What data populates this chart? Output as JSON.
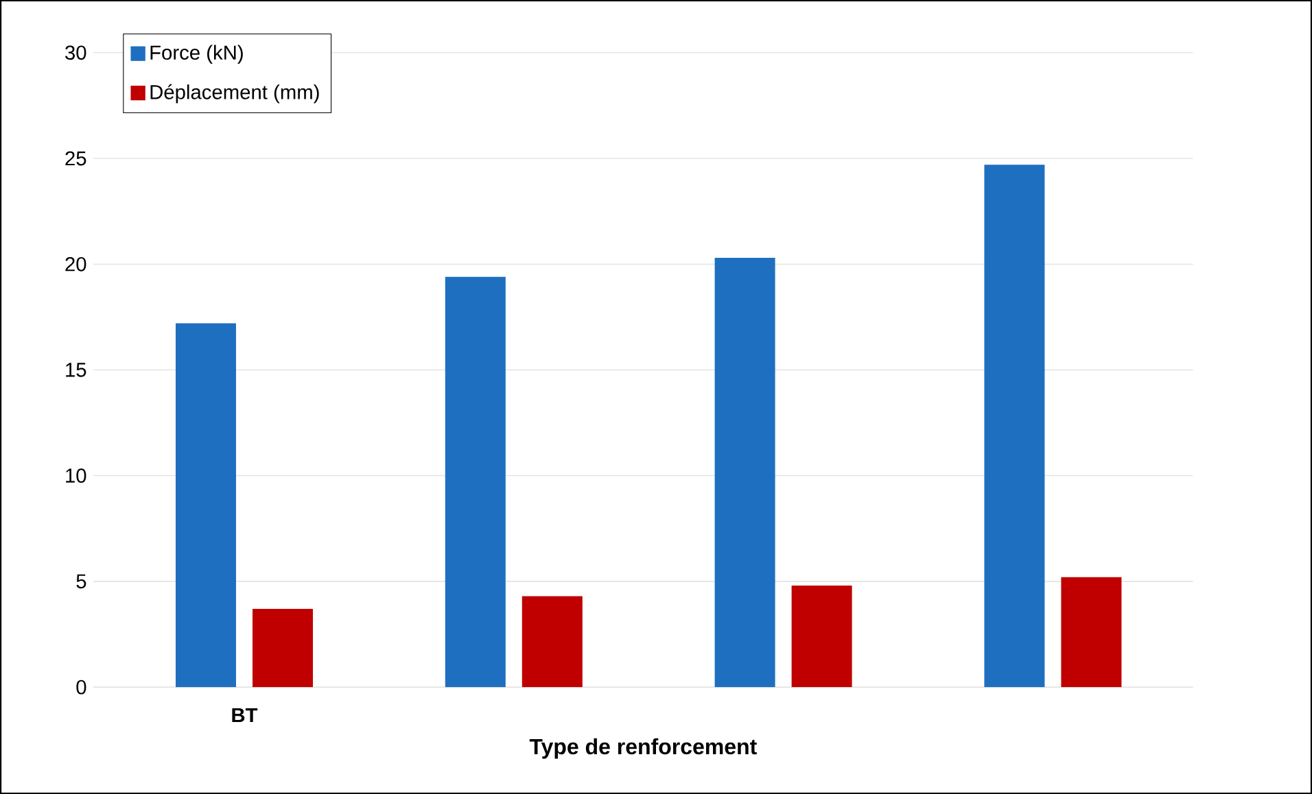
{
  "chart_data": {
    "type": "bar",
    "xlabel": "Type de renforcement",
    "categories": [
      "BT",
      null,
      null,
      null
    ],
    "series": [
      {
        "name": "Force (kN)",
        "color": "#1f6fc0",
        "values": [
          17.2,
          19.4,
          20.3,
          24.7
        ]
      },
      {
        "name": "Déplacement (mm)",
        "color": "#c00000",
        "values": [
          3.7,
          4.3,
          4.8,
          5.2
        ]
      }
    ],
    "ylim": [
      0,
      30
    ],
    "yticks": [
      0,
      5,
      10,
      15,
      20,
      25,
      30
    ],
    "grid": "y",
    "legend": "top left"
  }
}
